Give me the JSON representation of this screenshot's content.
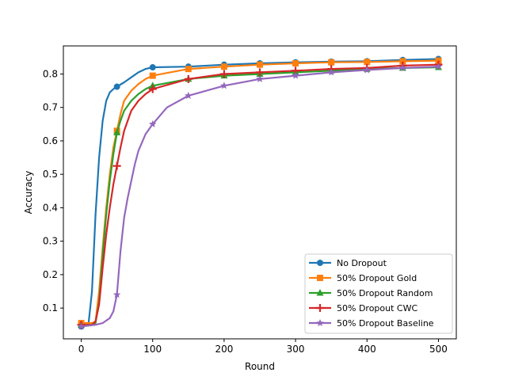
{
  "chart_data": {
    "type": "line",
    "xlabel": "Round",
    "ylabel": "Accuracy",
    "xlim": [
      -25,
      525
    ],
    "ylim": [
      0.008,
      0.884
    ],
    "xticks": [
      0,
      100,
      200,
      300,
      400,
      500
    ],
    "yticks": [
      0.1,
      0.2,
      0.3,
      0.4,
      0.5,
      0.6,
      0.7,
      0.8
    ],
    "legend_position": "lower-right",
    "grid": false,
    "series": [
      {
        "name": "No Dropout",
        "color": "#1f77b4",
        "marker": "circle",
        "x": [
          0,
          10,
          15,
          20,
          25,
          30,
          35,
          40,
          45,
          50,
          60,
          70,
          80,
          90,
          100,
          150,
          200,
          250,
          300,
          350,
          400,
          450,
          500
        ],
        "y": [
          0.045,
          0.05,
          0.15,
          0.38,
          0.55,
          0.66,
          0.72,
          0.745,
          0.755,
          0.762,
          0.775,
          0.79,
          0.805,
          0.815,
          0.82,
          0.822,
          0.828,
          0.832,
          0.835,
          0.837,
          0.838,
          0.842,
          0.845
        ]
      },
      {
        "name": "50% Dropout Gold",
        "color": "#ff7f0e",
        "marker": "square",
        "x": [
          0,
          15,
          20,
          25,
          30,
          35,
          40,
          45,
          50,
          55,
          60,
          70,
          80,
          90,
          100,
          150,
          200,
          250,
          300,
          350,
          400,
          450,
          500
        ],
        "y": [
          0.055,
          0.055,
          0.06,
          0.15,
          0.28,
          0.4,
          0.5,
          0.58,
          0.63,
          0.68,
          0.72,
          0.75,
          0.77,
          0.785,
          0.795,
          0.815,
          0.822,
          0.828,
          0.832,
          0.835,
          0.836,
          0.838,
          0.84
        ]
      },
      {
        "name": "50% Dropout Random",
        "color": "#2ca02c",
        "marker": "triangle",
        "x": [
          0,
          15,
          20,
          25,
          30,
          35,
          40,
          45,
          50,
          55,
          60,
          70,
          80,
          90,
          100,
          150,
          200,
          250,
          300,
          350,
          400,
          450,
          500
        ],
        "y": [
          0.05,
          0.05,
          0.055,
          0.12,
          0.26,
          0.38,
          0.48,
          0.56,
          0.625,
          0.66,
          0.69,
          0.72,
          0.74,
          0.755,
          0.765,
          0.785,
          0.795,
          0.8,
          0.805,
          0.81,
          0.815,
          0.818,
          0.82
        ]
      },
      {
        "name": "50% Dropout CWC",
        "color": "#d62728",
        "marker": "plus",
        "x": [
          0,
          15,
          20,
          25,
          30,
          35,
          40,
          45,
          50,
          55,
          60,
          70,
          80,
          90,
          100,
          150,
          200,
          250,
          300,
          350,
          400,
          450,
          500
        ],
        "y": [
          0.05,
          0.05,
          0.06,
          0.11,
          0.22,
          0.32,
          0.4,
          0.47,
          0.525,
          0.58,
          0.63,
          0.69,
          0.72,
          0.74,
          0.755,
          0.785,
          0.8,
          0.805,
          0.81,
          0.815,
          0.818,
          0.825,
          0.828
        ]
      },
      {
        "name": "50% Dropout Baseline",
        "color": "#9467bd",
        "marker": "star",
        "x": [
          0,
          20,
          30,
          40,
          45,
          50,
          55,
          60,
          65,
          70,
          75,
          80,
          90,
          100,
          120,
          150,
          200,
          250,
          300,
          350,
          400,
          450,
          500
        ],
        "y": [
          0.045,
          0.05,
          0.055,
          0.07,
          0.09,
          0.14,
          0.27,
          0.37,
          0.43,
          0.48,
          0.53,
          0.57,
          0.62,
          0.65,
          0.7,
          0.735,
          0.765,
          0.785,
          0.795,
          0.805,
          0.812,
          0.818,
          0.822
        ]
      }
    ]
  }
}
